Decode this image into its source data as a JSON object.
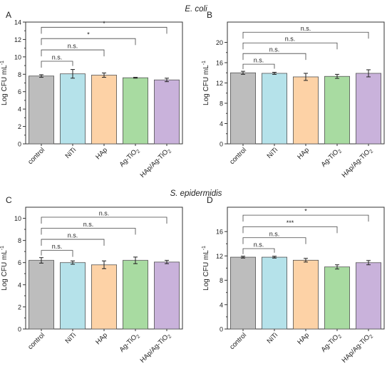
{
  "figure": {
    "section_titles": [
      "E. coli",
      "S. epidermidis"
    ]
  },
  "chart_data": [
    {
      "panel_label": "A",
      "type": "bar",
      "categories": [
        "control",
        "NiTi",
        "HAp",
        "Ag-TiO2",
        "HAp/Ag-TiO2"
      ],
      "category_labels": [
        {
          "main": "control",
          "sub": "",
          "tail": ""
        },
        {
          "main": "NiTi",
          "sub": "",
          "tail": ""
        },
        {
          "main": "HAp",
          "sub": "",
          "tail": ""
        },
        {
          "main": "Ag-TiO",
          "sub": "2",
          "tail": ""
        },
        {
          "main": "HAp/Ag-TiO",
          "sub": "2",
          "tail": ""
        }
      ],
      "values": [
        7.8,
        8.05,
        7.9,
        7.6,
        7.35
      ],
      "errors": [
        0.15,
        0.5,
        0.25,
        0.05,
        0.2
      ],
      "ylabel": "Log CFU mL",
      "ylabel_sup": "-1",
      "ylim": [
        0,
        14
      ],
      "yticks": [
        0,
        2,
        4,
        6,
        8,
        10,
        12,
        14
      ],
      "grid": false,
      "colors": [
        "#bdbdbd",
        "#b5e2ea",
        "#fdd2a6",
        "#a8dba1",
        "#c9b2db"
      ],
      "significance": [
        {
          "target": 1,
          "label": "n.s.",
          "level": 9.5
        },
        {
          "target": 2,
          "label": "n.s.",
          "level": 10.8
        },
        {
          "target": 3,
          "label": "*",
          "level": 12.1
        },
        {
          "target": 4,
          "label": "*",
          "level": 13.4
        }
      ]
    },
    {
      "panel_label": "B",
      "type": "bar",
      "categories": [
        "control",
        "NiTi",
        "HAp",
        "Ag-TiO2",
        "HAp/Ag-TiO2"
      ],
      "category_labels": [
        {
          "main": "control",
          "sub": "",
          "tail": ""
        },
        {
          "main": "NiTi",
          "sub": "",
          "tail": ""
        },
        {
          "main": "HAp",
          "sub": "",
          "tail": ""
        },
        {
          "main": "Ag-TiO",
          "sub": "2",
          "tail": ""
        },
        {
          "main": "HAp/Ag-TiO",
          "sub": "2",
          "tail": ""
        }
      ],
      "values": [
        14.0,
        13.9,
        13.2,
        13.3,
        13.9
      ],
      "errors": [
        0.3,
        0.2,
        0.7,
        0.4,
        0.7
      ],
      "ylabel": "Log CFU mL",
      "ylabel_sup": "-1",
      "ylim": [
        0,
        24
      ],
      "yticks": [
        0,
        4,
        8,
        12,
        16,
        20
      ],
      "grid": false,
      "colors": [
        "#bdbdbd",
        "#b5e2ea",
        "#fdd2a6",
        "#a8dba1",
        "#c9b2db"
      ],
      "significance": [
        {
          "target": 1,
          "label": "n.s.",
          "level": 15.7
        },
        {
          "target": 2,
          "label": "n.s.",
          "level": 17.8
        },
        {
          "target": 3,
          "label": "n.s.",
          "level": 19.9
        },
        {
          "target": 4,
          "label": "n.s.",
          "level": 22.0
        }
      ]
    },
    {
      "panel_label": "C",
      "type": "bar",
      "categories": [
        "control",
        "NiTi",
        "HAp",
        "Ag-TiO2",
        "HAp/Ag-TiO2"
      ],
      "category_labels": [
        {
          "main": "control",
          "sub": "",
          "tail": ""
        },
        {
          "main": "NiTi",
          "sub": "",
          "tail": ""
        },
        {
          "main": "HAp",
          "sub": "",
          "tail": ""
        },
        {
          "main": "Ag-TiO",
          "sub": "2",
          "tail": ""
        },
        {
          "main": "HAp/Ag-TiO",
          "sub": "2",
          "tail": ""
        }
      ],
      "values": [
        6.2,
        6.0,
        5.8,
        6.2,
        6.05
      ],
      "errors": [
        0.25,
        0.15,
        0.35,
        0.3,
        0.15
      ],
      "ylabel": "Log CFU mL",
      "ylabel_sup": "-1",
      "ylim": [
        0,
        11
      ],
      "yticks": [
        0,
        2,
        4,
        6,
        8,
        10
      ],
      "grid": false,
      "colors": [
        "#bdbdbd",
        "#b5e2ea",
        "#fdd2a6",
        "#a8dba1",
        "#c9b2db"
      ],
      "significance": [
        {
          "target": 1,
          "label": "n.s.",
          "level": 7.1
        },
        {
          "target": 2,
          "label": "n.s.",
          "level": 8.1
        },
        {
          "target": 3,
          "label": "n.s.",
          "level": 9.1
        },
        {
          "target": 4,
          "label": "n.s.",
          "level": 10.1
        }
      ]
    },
    {
      "panel_label": "D",
      "type": "bar",
      "categories": [
        "control",
        "NiTi",
        "HAp",
        "Ag-TiO2",
        "HAp/Ag-TiO2"
      ],
      "category_labels": [
        {
          "main": "control",
          "sub": "",
          "tail": ""
        },
        {
          "main": "NiTi",
          "sub": "",
          "tail": ""
        },
        {
          "main": "HAp",
          "sub": "",
          "tail": ""
        },
        {
          "main": "Ag-TiO",
          "sub": "2",
          "tail": ""
        },
        {
          "main": "HAp/Ag-TiO",
          "sub": "2",
          "tail": ""
        }
      ],
      "values": [
        11.8,
        11.8,
        11.3,
        10.2,
        10.9
      ],
      "errors": [
        0.15,
        0.15,
        0.3,
        0.35,
        0.35
      ],
      "ylabel": "Log CFU mL",
      "ylabel_sup": "-1",
      "ylim": [
        0,
        20
      ],
      "yticks": [
        0,
        4,
        8,
        12,
        16
      ],
      "grid": false,
      "colors": [
        "#bdbdbd",
        "#b5e2ea",
        "#fdd2a6",
        "#a8dba1",
        "#c9b2db"
      ],
      "significance": [
        {
          "target": 1,
          "label": "n.s.",
          "level": 13.2
        },
        {
          "target": 2,
          "label": "n.s.",
          "level": 15.0
        },
        {
          "target": 3,
          "label": "***",
          "level": 16.8
        },
        {
          "target": 4,
          "label": "*",
          "level": 18.7
        }
      ]
    }
  ]
}
